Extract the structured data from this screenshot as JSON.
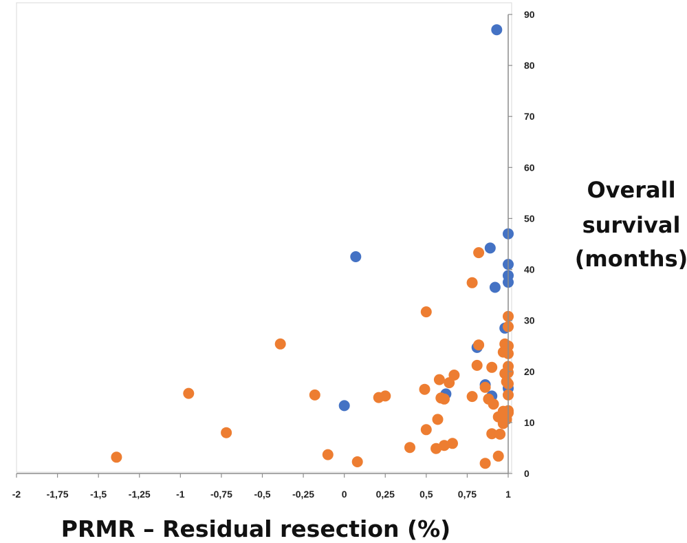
{
  "chart_data": {
    "type": "scatter",
    "title": "",
    "xlabel": "PRMR – Residual resection (%)",
    "ylabel_lines": [
      "Overall",
      "survival",
      "(months)"
    ],
    "xlim": [
      -2,
      1
    ],
    "ylim": [
      0,
      90
    ],
    "x_ticks": [
      -2,
      -1.75,
      -1.5,
      -1.25,
      -1,
      -0.75,
      -0.5,
      -0.25,
      0,
      0.25,
      0.5,
      0.75,
      1
    ],
    "x_tick_labels": [
      "-2",
      "-1,75",
      "-1,5",
      "-1,25",
      "-1",
      "-0,75",
      "-0,5",
      "-0,25",
      "0",
      "0,25",
      "0,5",
      "0,75",
      "1"
    ],
    "y_ticks": [
      0,
      10,
      20,
      30,
      40,
      50,
      60,
      70,
      80,
      90
    ],
    "y_tick_labels": [
      "0",
      "10",
      "20",
      "30",
      "40",
      "50",
      "60",
      "70",
      "80",
      "90"
    ],
    "grid": false,
    "legend": "none",
    "series": [
      {
        "color": "#4472C4",
        "points": [
          [
            0.93,
            87.0
          ],
          [
            1.0,
            47.0
          ],
          [
            0.89,
            44.2
          ],
          [
            0.07,
            42.5
          ],
          [
            1.0,
            41.0
          ],
          [
            1.0,
            38.8
          ],
          [
            1.0,
            37.5
          ],
          [
            0.92,
            36.5
          ],
          [
            0.98,
            28.5
          ],
          [
            0.81,
            24.7
          ],
          [
            0.86,
            17.4
          ],
          [
            1.0,
            16.7
          ],
          [
            0.62,
            15.6
          ],
          [
            0.9,
            15.2
          ],
          [
            0.0,
            13.3
          ],
          [
            0.98,
            10.8
          ]
        ]
      },
      {
        "color": "#ED7D31",
        "points": [
          [
            0.82,
            43.3
          ],
          [
            0.78,
            37.4
          ],
          [
            0.5,
            31.7
          ],
          [
            1.0,
            30.8
          ],
          [
            1.0,
            28.8
          ],
          [
            -0.39,
            25.4
          ],
          [
            0.82,
            25.2
          ],
          [
            0.98,
            25.4
          ],
          [
            1.0,
            25.0
          ],
          [
            0.97,
            23.8
          ],
          [
            1.0,
            23.5
          ],
          [
            0.81,
            21.2
          ],
          [
            0.9,
            20.8
          ],
          [
            1.0,
            21.0
          ],
          [
            0.67,
            19.3
          ],
          [
            0.98,
            19.6
          ],
          [
            1.0,
            19.8
          ],
          [
            0.58,
            18.4
          ],
          [
            0.64,
            17.8
          ],
          [
            0.99,
            18.0
          ],
          [
            1.0,
            17.6
          ],
          [
            0.86,
            16.9
          ],
          [
            0.49,
            16.5
          ],
          [
            -0.95,
            15.7
          ],
          [
            -0.18,
            15.4
          ],
          [
            0.25,
            15.2
          ],
          [
            0.21,
            14.9
          ],
          [
            0.78,
            15.1
          ],
          [
            0.59,
            14.8
          ],
          [
            0.61,
            14.6
          ],
          [
            0.88,
            14.6
          ],
          [
            0.91,
            13.6
          ],
          [
            1.0,
            15.4
          ],
          [
            1.0,
            12.3
          ],
          [
            0.97,
            12.2
          ],
          [
            1.0,
            11.9
          ],
          [
            0.57,
            10.6
          ],
          [
            0.94,
            11.1
          ],
          [
            0.99,
            10.6
          ],
          [
            0.5,
            8.6
          ],
          [
            0.97,
            9.8
          ],
          [
            -0.72,
            8.0
          ],
          [
            0.9,
            7.8
          ],
          [
            0.95,
            7.7
          ],
          [
            0.66,
            5.9
          ],
          [
            0.61,
            5.5
          ],
          [
            0.4,
            5.1
          ],
          [
            0.56,
            4.9
          ],
          [
            -0.1,
            3.7
          ],
          [
            0.94,
            3.4
          ],
          [
            -1.39,
            3.2
          ],
          [
            0.08,
            2.3
          ],
          [
            0.86,
            2.0
          ]
        ]
      }
    ]
  }
}
